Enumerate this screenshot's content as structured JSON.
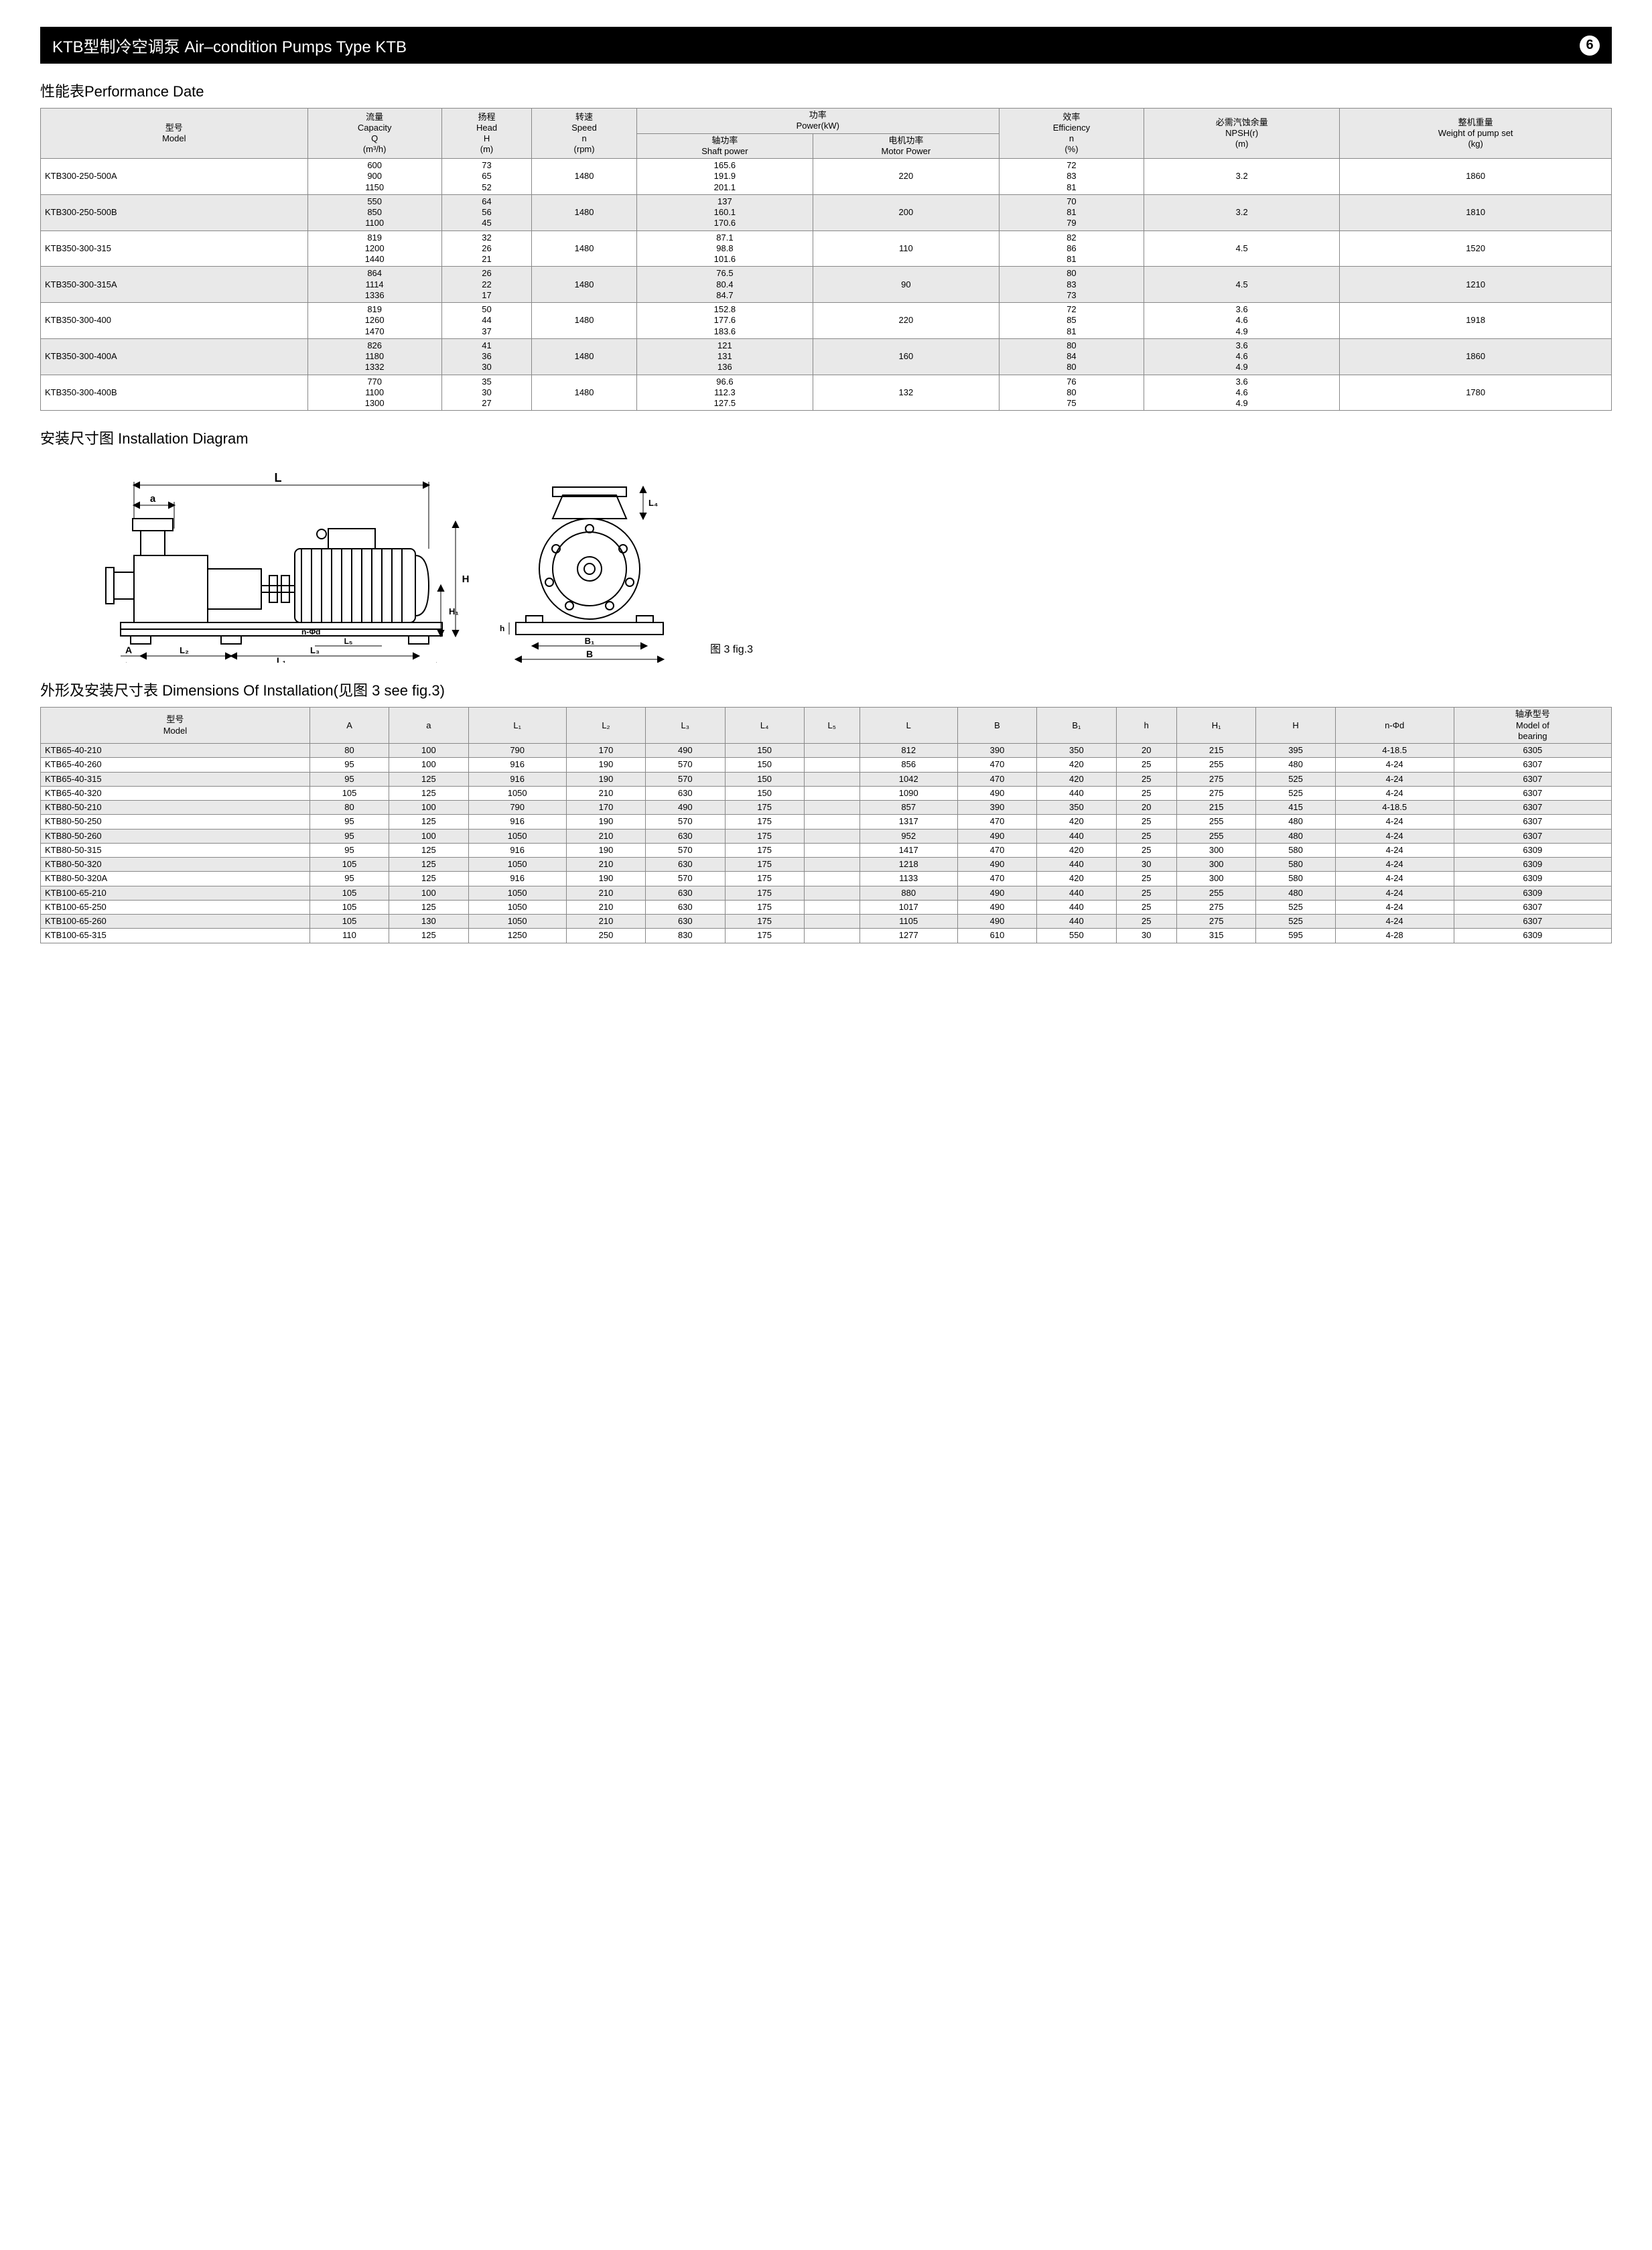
{
  "titleBar": {
    "title": "KTB型制冷空调泵 Air–condition Pumps Type KTB",
    "pageNumber": "6"
  },
  "performance": {
    "heading": "性能表Performance Date",
    "headers": {
      "model": "型号\nModel",
      "capacity": "流量\nCapacity\nQ\n(m³/h)",
      "head": "扬程\nHead\nH\n(m)",
      "speed": "转速\nSpeed\nn\n(rpm)",
      "powerGroup": "功率\nPower(kW)",
      "shaftPower": "轴功率\nShaft power",
      "motorPower": "电机功率\nMotor Power",
      "efficiency": "效率\nEfficiency\nn\n(%)",
      "npsh": "必需汽蚀余量\nNPSH(r)\n(m)",
      "weight": "整机重量\nWeight of pump set\n(kg)"
    },
    "rows": [
      {
        "model": "KTB300-250-500A",
        "q": "600\n900\n1150",
        "h": "73\n65\n52",
        "speed": "1480",
        "shaft": "165.6\n191.9\n201.1",
        "motor": "220",
        "eff": "72\n83\n81",
        "npsh": "3.2",
        "weight": "1860"
      },
      {
        "model": "KTB300-250-500B",
        "q": "550\n850\n1100",
        "h": "64\n56\n45",
        "speed": "1480",
        "shaft": "137\n160.1\n170.6",
        "motor": "200",
        "eff": "70\n81\n79",
        "npsh": "3.2",
        "weight": "1810"
      },
      {
        "model": "KTB350-300-315",
        "q": "819\n1200\n1440",
        "h": "32\n26\n21",
        "speed": "1480",
        "shaft": "87.1\n98.8\n101.6",
        "motor": "110",
        "eff": "82\n86\n81",
        "npsh": "4.5",
        "weight": "1520"
      },
      {
        "model": "KTB350-300-315A",
        "q": "864\n1114\n1336",
        "h": "26\n22\n17",
        "speed": "1480",
        "shaft": "76.5\n80.4\n84.7",
        "motor": "90",
        "eff": "80\n83\n73",
        "npsh": "4.5",
        "weight": "1210"
      },
      {
        "model": "KTB350-300-400",
        "q": "819\n1260\n1470",
        "h": "50\n44\n37",
        "speed": "1480",
        "shaft": "152.8\n177.6\n183.6",
        "motor": "220",
        "eff": "72\n85\n81",
        "npsh": "3.6\n4.6\n4.9",
        "weight": "1918"
      },
      {
        "model": "KTB350-300-400A",
        "q": "826\n1180\n1332",
        "h": "41\n36\n30",
        "speed": "1480",
        "shaft": "121\n131\n136",
        "motor": "160",
        "eff": "80\n84\n80",
        "npsh": "3.6\n4.6\n4.9",
        "weight": "1860"
      },
      {
        "model": "KTB350-300-400B",
        "q": "770\n1100\n1300",
        "h": "35\n30\n27",
        "speed": "1480",
        "shaft": "96.6\n112.3\n127.5",
        "motor": "132",
        "eff": "76\n80\n75",
        "npsh": "3.6\n4.6\n4.9",
        "weight": "1780"
      }
    ]
  },
  "installationDiagram": {
    "heading": "安装尺寸图 Installation Diagram",
    "caption": "图 3 fig.3",
    "labels": {
      "L": "L",
      "a": "a",
      "A": "A",
      "L1": "L₁",
      "L2": "L₂",
      "L3": "L₃",
      "L4": "L₄",
      "L5": "L₅",
      "nfd": "n-Φd",
      "H": "H",
      "H1": "H₁",
      "h": "h",
      "B": "B",
      "B1": "B₁"
    }
  },
  "dimensions": {
    "heading": "外形及安装尺寸表 Dimensions Of Installation(见图 3 see fig.3)",
    "headers": [
      "型号\nModel",
      "A",
      "a",
      "L₁",
      "L₂",
      "L₃",
      "L₄",
      "L₅",
      "L",
      "B",
      "B₁",
      "h",
      "H₁",
      "H",
      "n-Φd",
      "轴承型号\nModel of\nbearing"
    ],
    "rows": [
      [
        "KTB65-40-210",
        "80",
        "100",
        "790",
        "170",
        "490",
        "150",
        "",
        "812",
        "390",
        "350",
        "20",
        "215",
        "395",
        "4-18.5",
        "6305"
      ],
      [
        "KTB65-40-260",
        "95",
        "100",
        "916",
        "190",
        "570",
        "150",
        "",
        "856",
        "470",
        "420",
        "25",
        "255",
        "480",
        "4-24",
        "6307"
      ],
      [
        "KTB65-40-315",
        "95",
        "125",
        "916",
        "190",
        "570",
        "150",
        "",
        "1042",
        "470",
        "420",
        "25",
        "275",
        "525",
        "4-24",
        "6307"
      ],
      [
        "KTB65-40-320",
        "105",
        "125",
        "1050",
        "210",
        "630",
        "150",
        "",
        "1090",
        "490",
        "440",
        "25",
        "275",
        "525",
        "4-24",
        "6307"
      ],
      [
        "KTB80-50-210",
        "80",
        "100",
        "790",
        "170",
        "490",
        "175",
        "",
        "857",
        "390",
        "350",
        "20",
        "215",
        "415",
        "4-18.5",
        "6307"
      ],
      [
        "KTB80-50-250",
        "95",
        "125",
        "916",
        "190",
        "570",
        "175",
        "",
        "1317",
        "470",
        "420",
        "25",
        "255",
        "480",
        "4-24",
        "6307"
      ],
      [
        "KTB80-50-260",
        "95",
        "100",
        "1050",
        "210",
        "630",
        "175",
        "",
        "952",
        "490",
        "440",
        "25",
        "255",
        "480",
        "4-24",
        "6307"
      ],
      [
        "KTB80-50-315",
        "95",
        "125",
        "916",
        "190",
        "570",
        "175",
        "",
        "1417",
        "470",
        "420",
        "25",
        "300",
        "580",
        "4-24",
        "6309"
      ],
      [
        "KTB80-50-320",
        "105",
        "125",
        "1050",
        "210",
        "630",
        "175",
        "",
        "1218",
        "490",
        "440",
        "30",
        "300",
        "580",
        "4-24",
        "6309"
      ],
      [
        "KTB80-50-320A",
        "95",
        "125",
        "916",
        "190",
        "570",
        "175",
        "",
        "1133",
        "470",
        "420",
        "25",
        "300",
        "580",
        "4-24",
        "6309"
      ],
      [
        "KTB100-65-210",
        "105",
        "100",
        "1050",
        "210",
        "630",
        "175",
        "",
        "880",
        "490",
        "440",
        "25",
        "255",
        "480",
        "4-24",
        "6309"
      ],
      [
        "KTB100-65-250",
        "105",
        "125",
        "1050",
        "210",
        "630",
        "175",
        "",
        "1017",
        "490",
        "440",
        "25",
        "275",
        "525",
        "4-24",
        "6307"
      ],
      [
        "KTB100-65-260",
        "105",
        "130",
        "1050",
        "210",
        "630",
        "175",
        "",
        "1105",
        "490",
        "440",
        "25",
        "275",
        "525",
        "4-24",
        "6307"
      ],
      [
        "KTB100-65-315",
        "110",
        "125",
        "1250",
        "250",
        "830",
        "175",
        "",
        "1277",
        "610",
        "550",
        "30",
        "315",
        "595",
        "4-28",
        "6309"
      ]
    ]
  }
}
